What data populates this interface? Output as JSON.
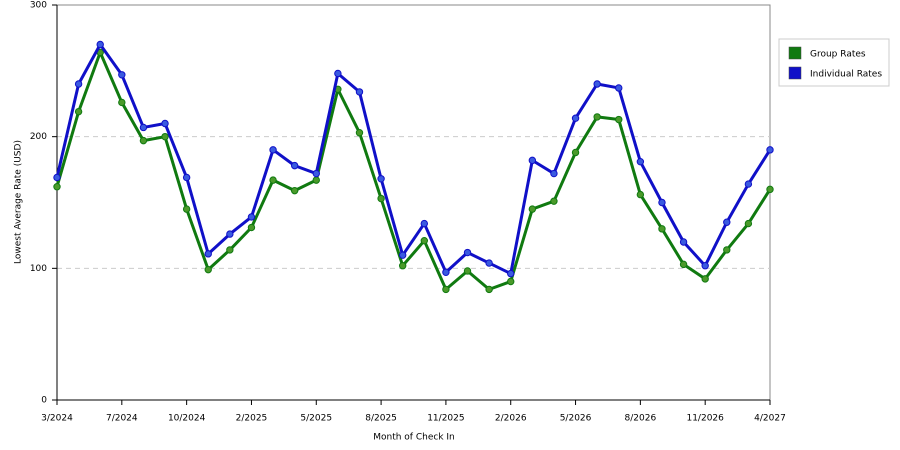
{
  "chart_data": {
    "type": "line",
    "xlabel": "Month of Check In",
    "ylabel": "Lowest Average Rate (USD)",
    "categories": [
      "3/2024",
      null,
      null,
      "7/2024",
      null,
      null,
      "10/2024",
      null,
      null,
      "2/2025",
      null,
      null,
      "5/2025",
      null,
      null,
      "8/2025",
      null,
      null,
      "11/2025",
      null,
      null,
      "2/2026",
      null,
      null,
      "5/2026",
      null,
      null,
      "8/2026",
      null,
      null,
      "11/2026",
      null,
      null,
      "4/2027"
    ],
    "series": [
      {
        "name": "Group Rates",
        "color": "#107a10",
        "marker_color": "#4a9a2a",
        "values": [
          162,
          219,
          264,
          226,
          197,
          200,
          145,
          99,
          114,
          131,
          167,
          159,
          167,
          236,
          203,
          153,
          102,
          121,
          84,
          98,
          84,
          90,
          145,
          151,
          188,
          215,
          213,
          156,
          130,
          103,
          92,
          114,
          134,
          160
        ]
      },
      {
        "name": "Individual Rates",
        "color": "#1010c8",
        "marker_color": "#3a5ae0",
        "values": [
          169,
          240,
          270,
          247,
          207,
          210,
          169,
          111,
          126,
          139,
          190,
          178,
          172,
          248,
          234,
          168,
          110,
          134,
          97,
          112,
          104,
          96,
          182,
          172,
          214,
          240,
          237,
          181,
          150,
          120,
          102,
          135,
          164,
          190
        ]
      }
    ],
    "ylim": [
      0,
      300
    ],
    "yticks": [
      0,
      100,
      200,
      300
    ],
    "grid": true,
    "legend": "right"
  }
}
